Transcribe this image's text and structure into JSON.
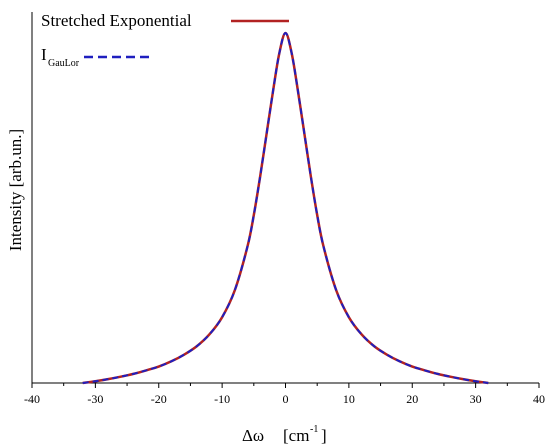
{
  "chart_data": {
    "type": "line",
    "xlabel": "Δω",
    "xlabel_unit": "[cm",
    "xlabel_unit_exp": "-1",
    "xlabel_unit_close": "]",
    "ylabel": "Intensity [arb.un.]",
    "xlim": [
      -40,
      40
    ],
    "ylim": [
      0,
      1.06
    ],
    "x_ticks": [
      -40,
      -30,
      -20,
      -10,
      0,
      10,
      20,
      30,
      40
    ],
    "y_ticks": [],
    "grid": false,
    "legend_position": "top-left",
    "series": [
      {
        "name": "Stretched Exponential",
        "color": "#b22222",
        "style": "solid",
        "x": [
          -32,
          -30,
          -28,
          -26,
          -24,
          -22,
          -20,
          -18,
          -16,
          -14,
          -12,
          -10,
          -8,
          -6,
          -5,
          -4,
          -3,
          -2,
          -1,
          0,
          1,
          2,
          3,
          4,
          5,
          6,
          8,
          10,
          12,
          14,
          16,
          18,
          20,
          22,
          24,
          26,
          28,
          30,
          32
        ],
        "y": [
          0.0,
          0.005,
          0.011,
          0.018,
          0.026,
          0.036,
          0.047,
          0.062,
          0.081,
          0.105,
          0.139,
          0.188,
          0.265,
          0.39,
          0.48,
          0.59,
          0.71,
          0.83,
          0.94,
          1.0,
          0.94,
          0.83,
          0.71,
          0.59,
          0.48,
          0.39,
          0.265,
          0.188,
          0.139,
          0.105,
          0.081,
          0.062,
          0.047,
          0.036,
          0.026,
          0.018,
          0.011,
          0.005,
          0.0
        ]
      },
      {
        "name_main": "I",
        "name_sub": "GauLor",
        "color": "#1f1fbf",
        "style": "dashed",
        "x": [
          -32,
          -30,
          -28,
          -26,
          -24,
          -22,
          -20,
          -18,
          -16,
          -14,
          -12,
          -10,
          -8,
          -6,
          -5,
          -4,
          -3,
          -2,
          -1,
          0,
          1,
          2,
          3,
          4,
          5,
          6,
          8,
          10,
          12,
          14,
          16,
          18,
          20,
          22,
          24,
          26,
          28,
          30,
          32
        ],
        "y": [
          0.0,
          0.005,
          0.011,
          0.018,
          0.026,
          0.036,
          0.047,
          0.062,
          0.081,
          0.105,
          0.139,
          0.188,
          0.265,
          0.39,
          0.48,
          0.59,
          0.71,
          0.83,
          0.94,
          1.0,
          0.94,
          0.83,
          0.71,
          0.59,
          0.48,
          0.39,
          0.265,
          0.188,
          0.139,
          0.105,
          0.081,
          0.062,
          0.047,
          0.036,
          0.026,
          0.018,
          0.011,
          0.005,
          0.0
        ]
      }
    ]
  }
}
